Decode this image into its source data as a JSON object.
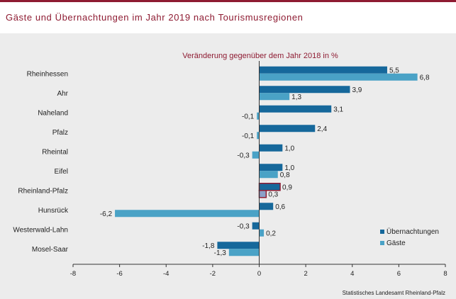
{
  "header": {
    "title": "Gäste und Übernachtungen im Jahr 2019 nach Tourismusregionen"
  },
  "source_note": "Statistisches Landesamt Rheinland-Pfalz",
  "colors": {
    "accent": "#8e1b32",
    "uebernachtungen": "#16689b",
    "gaeste": "#4aa2c6",
    "highlight_border": "#8e1b32",
    "highlight_fill_gaeste": "#8aa0c8"
  },
  "chart_data": {
    "type": "bar",
    "orientation": "horizontal",
    "title": "Veränderung gegenüber dem Jahr 2018 in %",
    "categories": [
      "Rheinhessen",
      "Ahr",
      "Naheland",
      "Pfalz",
      "Rheintal",
      "Eifel",
      "Rheinland-Pfalz",
      "Hunsrück",
      "Westerwald-Lahn",
      "Mosel-Saar"
    ],
    "series": [
      {
        "name": "Übernachtungen",
        "values": [
          5.5,
          3.9,
          3.1,
          2.4,
          1.0,
          1.0,
          0.9,
          0.6,
          -0.3,
          -1.8
        ]
      },
      {
        "name": "Gäste",
        "values": [
          6.8,
          1.3,
          -0.1,
          -0.1,
          -0.3,
          0.8,
          0.3,
          -6.2,
          0.2,
          -1.3
        ]
      }
    ],
    "value_labels": [
      [
        "5,5",
        "3,9",
        "3,1",
        "2,4",
        "1,0",
        "1,0",
        "0,9",
        "0,6",
        "-0,3",
        "-1,8"
      ],
      [
        "6,8",
        "1,3",
        "-0,1",
        "-0,1",
        "-0,3",
        "0,8",
        "0,3",
        "-6,2",
        "0,2",
        "-1,3"
      ]
    ],
    "highlighted_category": "Rheinland-Pfalz",
    "xlim": [
      -8,
      8
    ],
    "xticks": [
      -8,
      -6,
      -4,
      -2,
      0,
      2,
      4,
      6,
      8
    ],
    "legend_position": "right",
    "grid": false
  }
}
